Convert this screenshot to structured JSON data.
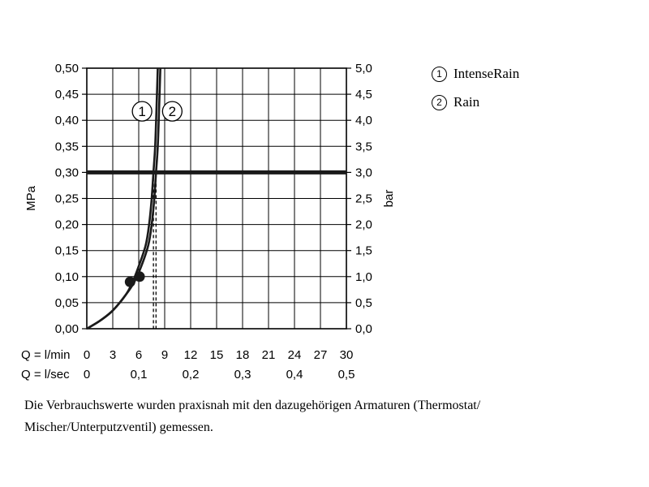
{
  "chart_data": {
    "type": "line",
    "ylabel_left": "MPa",
    "ylabel_right": "bar",
    "ylim": [
      0,
      0.5
    ],
    "xlim": [
      0,
      30
    ],
    "y_ticks_left": [
      "0,00",
      "0,05",
      "0,10",
      "0,15",
      "0,20",
      "0,25",
      "0,30",
      "0,35",
      "0,40",
      "0,45",
      "0,50"
    ],
    "y_ticks_right": [
      "0,0",
      "0,5",
      "1,0",
      "1,5",
      "2,0",
      "2,5",
      "3,0",
      "3,5",
      "4,0",
      "4,5",
      "5,0"
    ],
    "x_row1_label": "Q = l/min",
    "x_row1_ticks": [
      "0",
      "3",
      "6",
      "9",
      "12",
      "15",
      "18",
      "21",
      "24",
      "27",
      "30"
    ],
    "x_row2_label": "Q = l/sec",
    "x_row2_ticks": [
      {
        "x": 0,
        "label": "0"
      },
      {
        "x": 6,
        "label": "0,1"
      },
      {
        "x": 12,
        "label": "0,2"
      },
      {
        "x": 18,
        "label": "0,3"
      },
      {
        "x": 24,
        "label": "0,4"
      },
      {
        "x": 30,
        "label": "0,5"
      }
    ],
    "reference_line": {
      "y": 0.3
    },
    "grid": true,
    "series": [
      {
        "marker": "1",
        "name": "IntenseRain",
        "x": [
          0,
          1.5,
          3,
          4.5,
          5.3,
          6,
          6.8,
          7.2,
          7.5,
          7.7,
          7.9,
          8.05,
          8.2
        ],
        "y": [
          0,
          0.015,
          0.035,
          0.065,
          0.09,
          0.12,
          0.16,
          0.2,
          0.25,
          0.3,
          0.35,
          0.42,
          0.5
        ],
        "dot": {
          "x": 5.0,
          "y": 0.09
        },
        "at_reference_x": 7.7
      },
      {
        "marker": "2",
        "name": "Rain",
        "x": [
          0,
          1.5,
          3,
          4.5,
          5.5,
          6.3,
          7.1,
          7.5,
          7.8,
          8.0,
          8.2,
          8.35,
          8.5
        ],
        "y": [
          0,
          0.015,
          0.035,
          0.065,
          0.09,
          0.12,
          0.16,
          0.2,
          0.25,
          0.3,
          0.35,
          0.42,
          0.5
        ],
        "dot": {
          "x": 6.1,
          "y": 0.1
        },
        "at_reference_x": 8.0
      }
    ],
    "marker_y": 0.425
  },
  "legend": [
    {
      "marker": "1",
      "label": "IntenseRain"
    },
    {
      "marker": "2",
      "label": "Rain"
    }
  ],
  "caption": {
    "line1": "Die Verbrauchswerte wurden praxisnah mit den dazugehörigen Armaturen (Thermostat/",
    "line2": "Mischer/Unterputzventil) gemessen."
  }
}
